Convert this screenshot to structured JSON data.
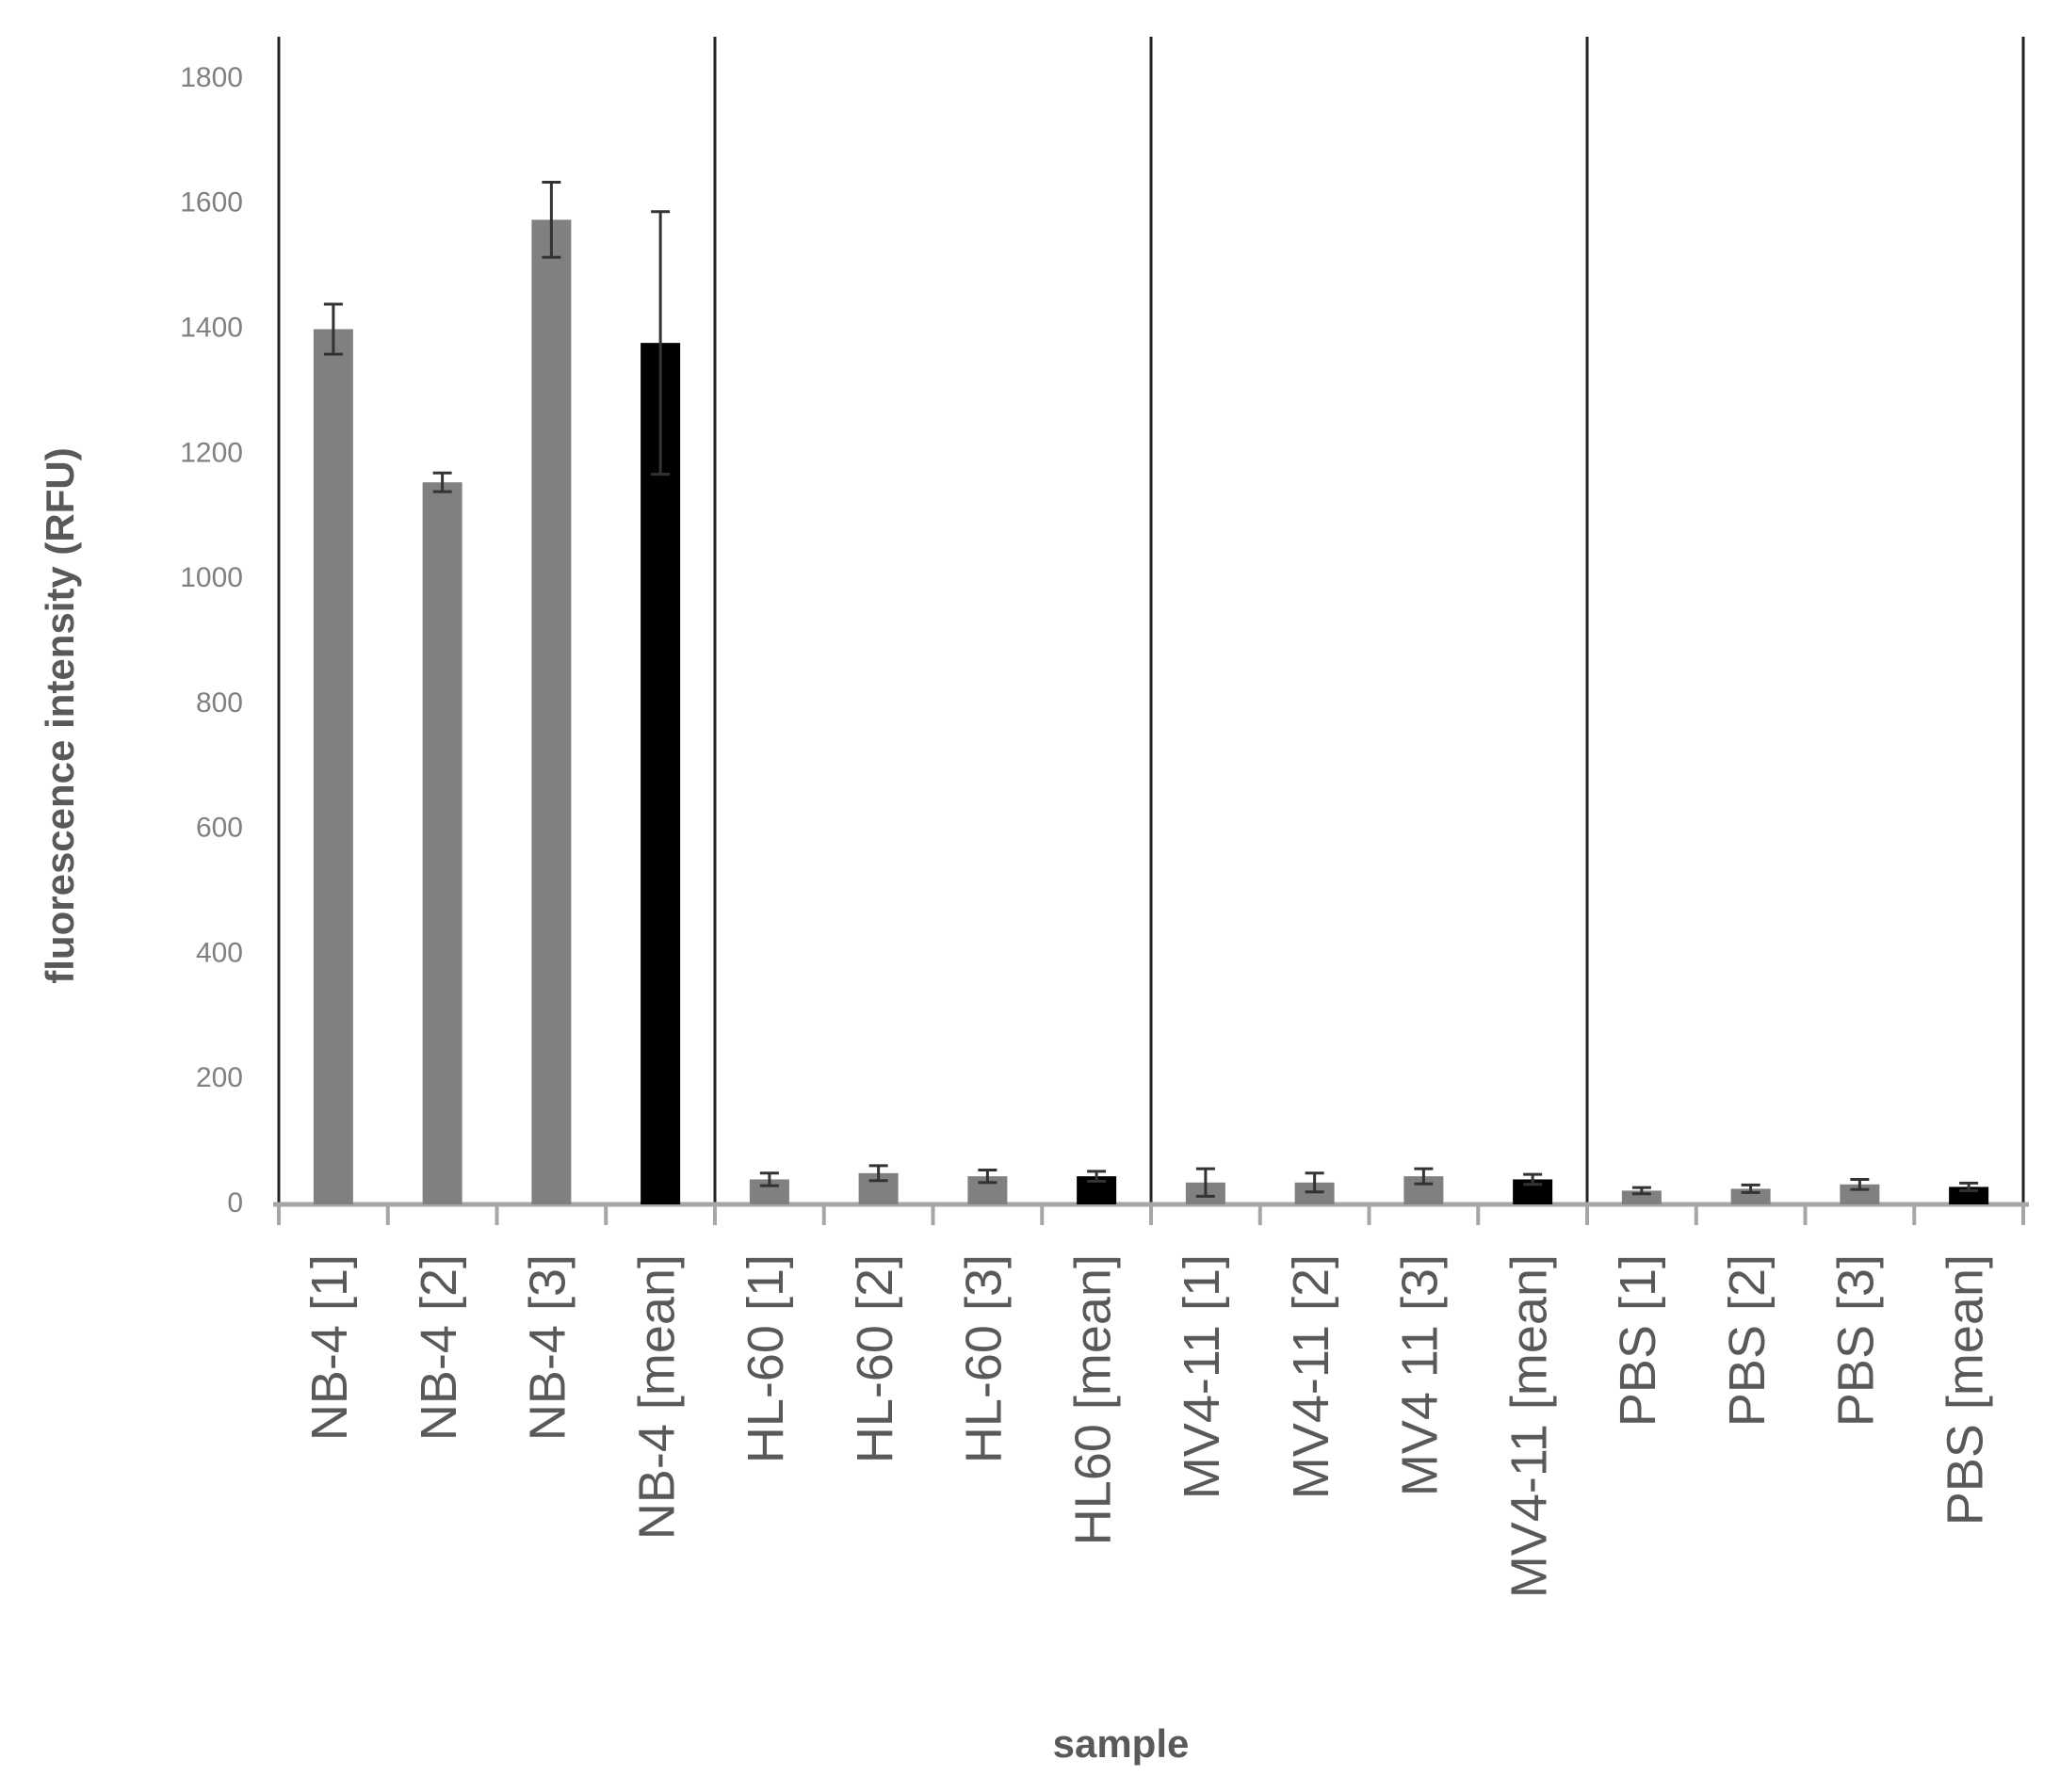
{
  "chart_data": {
    "type": "bar",
    "ylabel": "fluorescence intensity (RFU)",
    "xlabel": "sample",
    "categories": [
      "NB-4 [1]",
      "NB-4 [2]",
      "NB-4 [3]",
      "NB-4 [mean]",
      "HL-60 [1]",
      "HL-60 [2]",
      "HL-60 [3]",
      "HL60 [mean]",
      "MV4-11 [1]",
      "MV4-11 [2]",
      "MV4 11 [3]",
      "MV4-11 [mean]",
      "PBS [1]",
      "PBS [2]",
      "PBS [3]",
      "PBS [mean]"
    ],
    "values": [
      1400,
      1155,
      1575,
      1378,
      40,
      50,
      45,
      45,
      35,
      35,
      45,
      40,
      22,
      25,
      32,
      28
    ],
    "errors": [
      40,
      15,
      60,
      210,
      10,
      12,
      10,
      8,
      22,
      15,
      12,
      8,
      5,
      6,
      8,
      6
    ],
    "colors": [
      "#808080",
      "#808080",
      "#808080",
      "#000000",
      "#808080",
      "#808080",
      "#808080",
      "#000000",
      "#808080",
      "#808080",
      "#808080",
      "#000000",
      "#808080",
      "#808080",
      "#808080",
      "#000000"
    ],
    "ylim": [
      0,
      1800
    ],
    "yticks": [
      0,
      200,
      400,
      600,
      800,
      1000,
      1200,
      1400,
      1600,
      1800
    ]
  }
}
